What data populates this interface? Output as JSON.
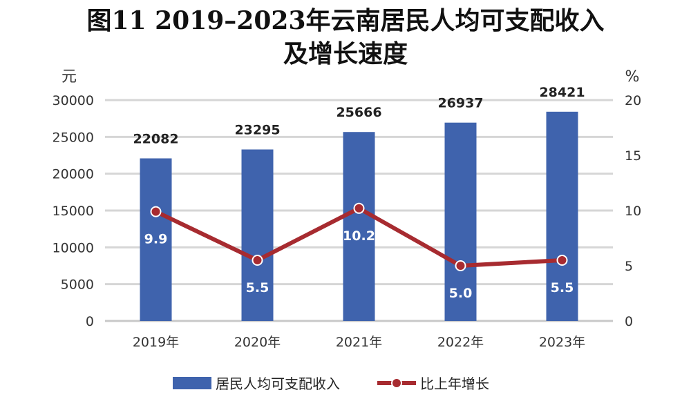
{
  "chart_data": {
    "type": "bar+line",
    "title_line1": "图11  2019–2023年云南居民人均可支配收入",
    "title_line2": "及增长速度",
    "y_left_unit": "元",
    "y_right_unit": "%",
    "categories": [
      "2019年",
      "2020年",
      "2021年",
      "2022年",
      "2023年"
    ],
    "y_left_lim": [
      0,
      30000
    ],
    "y_left_ticks": [
      0,
      5000,
      10000,
      15000,
      20000,
      25000,
      30000
    ],
    "y_right_lim": [
      0,
      20
    ],
    "y_right_ticks": [
      0,
      5,
      10,
      15,
      20
    ],
    "grid": true,
    "legend_position": "bottom",
    "series": [
      {
        "name": "居民人均可支配收入",
        "type": "bar",
        "axis": "left",
        "color": "#3F63AD",
        "values": [
          22082,
          23295,
          25666,
          26937,
          28421
        ],
        "labels": [
          "22082",
          "23295",
          "25666",
          "26937",
          "28421"
        ]
      },
      {
        "name": "比上年增长",
        "type": "line",
        "axis": "right",
        "color": "#A72B30",
        "values": [
          9.9,
          5.5,
          10.2,
          5.0,
          5.5
        ],
        "labels": [
          "9.9",
          "5.5",
          "10.2",
          "5.0",
          "5.5"
        ]
      }
    ]
  }
}
